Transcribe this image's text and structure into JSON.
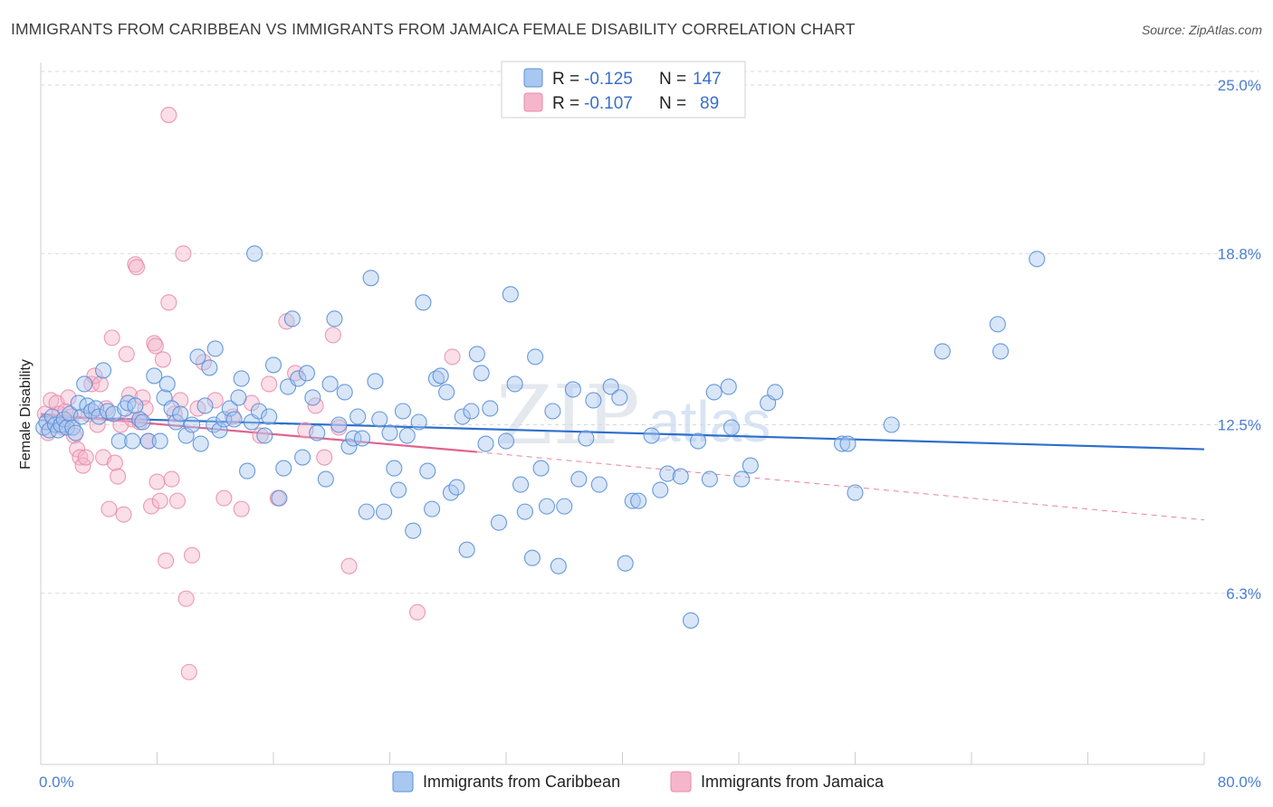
{
  "title": "IMMIGRANTS FROM CARIBBEAN VS IMMIGRANTS FROM JAMAICA FEMALE DISABILITY CORRELATION CHART",
  "source": "Source: ZipAtlas.com",
  "watermark": {
    "zip": "ZIP",
    "atlas": "atlas"
  },
  "colors": {
    "blue_fill": "#a9c8f0",
    "blue_stroke": "#5a8fd8",
    "blue_line": "#2e6fcc",
    "pink_fill": "#f5b6cb",
    "pink_stroke": "#e889a8",
    "pink_line": "#e0648f",
    "grid": "#d9d9d9",
    "tick_text": "#4a7fd0"
  },
  "legend": {
    "rows": [
      {
        "r_label": "R =",
        "r_value": "-0.125",
        "n_label": "N =",
        "n_value": "147",
        "series": "blue"
      },
      {
        "r_label": "R =",
        "r_value": "-0.107",
        "n_label": "N =",
        "n_value": "89",
        "series": "pink"
      }
    ]
  },
  "bottom_legend": [
    {
      "label": "Immigrants from Caribbean",
      "series": "blue"
    },
    {
      "label": "Immigrants from Jamaica",
      "series": "pink"
    }
  ],
  "chart_data": {
    "type": "scatter",
    "title": "IMMIGRANTS FROM CARIBBEAN VS IMMIGRANTS FROM JAMAICA FEMALE DISABILITY CORRELATION CHART",
    "xlabel": "",
    "ylabel": "Female Disability",
    "xlim": [
      0,
      80
    ],
    "ylim": [
      0,
      25.5
    ],
    "x_tick_labels": [
      "0.0%",
      "80.0%"
    ],
    "y_ticks": [
      6.3,
      12.5,
      18.8,
      25.0
    ],
    "y_tick_labels": [
      "6.3%",
      "12.5%",
      "18.8%",
      "25.0%"
    ],
    "grid": "horizontal dashed",
    "legend_position": "top-center",
    "series": [
      {
        "name": "Immigrants from Caribbean",
        "color": "blue",
        "trend": {
          "x": [
            0,
            80
          ],
          "y": [
            12.8,
            11.6
          ],
          "style": "solid"
        },
        "points": [
          [
            0.2,
            12.4
          ],
          [
            0.4,
            12.6
          ],
          [
            0.6,
            12.3
          ],
          [
            0.8,
            12.8
          ],
          [
            1.0,
            12.5
          ],
          [
            1.2,
            12.3
          ],
          [
            1.4,
            12.5
          ],
          [
            1.6,
            12.7
          ],
          [
            1.8,
            12.4
          ],
          [
            2.0,
            12.9
          ],
          [
            2.2,
            12.4
          ],
          [
            2.4,
            12.2
          ],
          [
            2.6,
            13.3
          ],
          [
            2.8,
            12.8
          ],
          [
            3.0,
            14.0
          ],
          [
            3.2,
            13.2
          ],
          [
            3.5,
            13.0
          ],
          [
            3.8,
            13.1
          ],
          [
            4.0,
            12.8
          ],
          [
            4.3,
            14.5
          ],
          [
            4.6,
            13.0
          ],
          [
            5.0,
            12.9
          ],
          [
            5.4,
            11.9
          ],
          [
            5.8,
            13.1
          ],
          [
            6.0,
            13.3
          ],
          [
            6.3,
            11.9
          ],
          [
            6.5,
            13.2
          ],
          [
            6.8,
            12.7
          ],
          [
            7.0,
            12.6
          ],
          [
            7.4,
            11.9
          ],
          [
            7.8,
            14.3
          ],
          [
            8.2,
            11.9
          ],
          [
            8.5,
            13.5
          ],
          [
            8.7,
            14.0
          ],
          [
            9.0,
            13.1
          ],
          [
            9.3,
            12.6
          ],
          [
            9.6,
            12.9
          ],
          [
            10.0,
            12.1
          ],
          [
            10.4,
            12.5
          ],
          [
            10.8,
            15.0
          ],
          [
            11.0,
            11.8
          ],
          [
            11.3,
            13.2
          ],
          [
            11.6,
            14.6
          ],
          [
            11.9,
            12.5
          ],
          [
            12.0,
            15.3
          ],
          [
            12.3,
            12.3
          ],
          [
            12.6,
            12.7
          ],
          [
            13.0,
            13.1
          ],
          [
            13.3,
            12.7
          ],
          [
            13.6,
            13.5
          ],
          [
            13.8,
            14.2
          ],
          [
            14.2,
            10.8
          ],
          [
            14.5,
            12.6
          ],
          [
            14.7,
            18.8
          ],
          [
            15.0,
            13.0
          ],
          [
            15.4,
            12.1
          ],
          [
            15.7,
            12.8
          ],
          [
            16.0,
            14.7
          ],
          [
            16.4,
            9.8
          ],
          [
            16.7,
            10.9
          ],
          [
            17.0,
            13.9
          ],
          [
            17.3,
            16.4
          ],
          [
            17.7,
            14.2
          ],
          [
            18.0,
            11.3
          ],
          [
            18.3,
            14.4
          ],
          [
            18.7,
            13.5
          ],
          [
            19.0,
            12.2
          ],
          [
            19.6,
            10.5
          ],
          [
            19.9,
            14.0
          ],
          [
            20.2,
            16.4
          ],
          [
            20.5,
            12.5
          ],
          [
            20.9,
            13.7
          ],
          [
            21.2,
            11.7
          ],
          [
            21.5,
            12.0
          ],
          [
            21.8,
            12.8
          ],
          [
            22.1,
            12.0
          ],
          [
            22.4,
            9.3
          ],
          [
            22.7,
            17.9
          ],
          [
            23.0,
            14.1
          ],
          [
            23.3,
            12.7
          ],
          [
            23.6,
            9.3
          ],
          [
            24.0,
            12.2
          ],
          [
            24.3,
            10.9
          ],
          [
            24.6,
            10.1
          ],
          [
            24.9,
            13.0
          ],
          [
            25.2,
            12.1
          ],
          [
            25.6,
            8.6
          ],
          [
            26.0,
            12.6
          ],
          [
            26.3,
            17.0
          ],
          [
            26.6,
            10.8
          ],
          [
            26.9,
            9.4
          ],
          [
            27.2,
            14.2
          ],
          [
            27.5,
            14.3
          ],
          [
            27.9,
            13.7
          ],
          [
            28.2,
            10.0
          ],
          [
            28.6,
            10.2
          ],
          [
            29.0,
            12.8
          ],
          [
            29.3,
            7.9
          ],
          [
            29.6,
            13.0
          ],
          [
            30.0,
            15.1
          ],
          [
            30.3,
            14.4
          ],
          [
            30.6,
            11.8
          ],
          [
            30.9,
            13.1
          ],
          [
            31.5,
            8.9
          ],
          [
            32.0,
            11.9
          ],
          [
            32.3,
            17.3
          ],
          [
            32.6,
            14.0
          ],
          [
            33.0,
            10.3
          ],
          [
            33.3,
            9.3
          ],
          [
            33.8,
            7.6
          ],
          [
            34.0,
            15.0
          ],
          [
            34.4,
            10.9
          ],
          [
            34.8,
            9.5
          ],
          [
            35.2,
            13.0
          ],
          [
            35.6,
            7.3
          ],
          [
            36.0,
            9.5
          ],
          [
            36.6,
            13.8
          ],
          [
            37.0,
            10.5
          ],
          [
            37.5,
            12.0
          ],
          [
            38.0,
            13.4
          ],
          [
            38.4,
            10.3
          ],
          [
            39.2,
            13.9
          ],
          [
            39.8,
            13.5
          ],
          [
            40.2,
            7.4
          ],
          [
            40.7,
            9.7
          ],
          [
            41.1,
            9.7
          ],
          [
            42.0,
            12.1
          ],
          [
            42.6,
            10.1
          ],
          [
            43.1,
            10.7
          ],
          [
            44.0,
            10.6
          ],
          [
            44.7,
            5.3
          ],
          [
            45.2,
            11.9
          ],
          [
            46.0,
            10.5
          ],
          [
            46.3,
            13.7
          ],
          [
            47.3,
            13.9
          ],
          [
            47.5,
            12.4
          ],
          [
            48.2,
            10.5
          ],
          [
            48.8,
            11.0
          ],
          [
            50.0,
            13.3
          ],
          [
            50.5,
            13.7
          ],
          [
            55.1,
            11.8
          ],
          [
            55.5,
            11.8
          ],
          [
            56.0,
            10.0
          ],
          [
            58.5,
            12.5
          ],
          [
            62.0,
            15.2
          ],
          [
            65.8,
            16.2
          ],
          [
            66.0,
            15.2
          ],
          [
            68.5,
            18.6
          ]
        ]
      },
      {
        "name": "Immigrants from Jamaica",
        "color": "pink",
        "trend": {
          "x": [
            0,
            30
          ],
          "y": [
            12.9,
            11.5
          ],
          "style": "solid",
          "extension": {
            "x": [
              30,
              80
            ],
            "y": [
              11.5,
              9.0
            ],
            "style": "dashed"
          }
        },
        "points": [
          [
            0.3,
            12.9
          ],
          [
            0.5,
            12.2
          ],
          [
            0.7,
            13.4
          ],
          [
            0.9,
            12.6
          ],
          [
            1.1,
            13.3
          ],
          [
            1.3,
            12.9
          ],
          [
            1.5,
            12.4
          ],
          [
            1.7,
            13.0
          ],
          [
            1.9,
            13.5
          ],
          [
            2.1,
            12.8
          ],
          [
            2.3,
            12.1
          ],
          [
            2.5,
            11.6
          ],
          [
            2.7,
            11.3
          ],
          [
            2.9,
            11.0
          ],
          [
            3.1,
            11.3
          ],
          [
            3.3,
            12.9
          ],
          [
            3.5,
            14.0
          ],
          [
            3.7,
            14.3
          ],
          [
            3.9,
            12.5
          ],
          [
            4.1,
            14.0
          ],
          [
            4.3,
            11.3
          ],
          [
            4.5,
            13.1
          ],
          [
            4.7,
            9.4
          ],
          [
            4.9,
            15.7
          ],
          [
            5.1,
            11.1
          ],
          [
            5.3,
            10.6
          ],
          [
            5.5,
            12.5
          ],
          [
            5.7,
            9.2
          ],
          [
            5.9,
            15.1
          ],
          [
            6.1,
            13.6
          ],
          [
            6.3,
            12.7
          ],
          [
            6.5,
            18.4
          ],
          [
            6.8,
            12.6
          ],
          [
            7.0,
            13.5
          ],
          [
            7.2,
            13.1
          ],
          [
            7.4,
            11.9
          ],
          [
            7.6,
            9.5
          ],
          [
            7.8,
            15.5
          ],
          [
            8.0,
            10.4
          ],
          [
            8.2,
            9.7
          ],
          [
            8.4,
            14.9
          ],
          [
            8.6,
            7.5
          ],
          [
            8.8,
            17.0
          ],
          [
            9.0,
            10.5
          ],
          [
            9.2,
            12.9
          ],
          [
            9.4,
            9.7
          ],
          [
            9.6,
            13.4
          ],
          [
            9.8,
            18.8
          ],
          [
            10.0,
            6.1
          ],
          [
            10.2,
            3.4
          ],
          [
            10.4,
            7.7
          ],
          [
            10.8,
            13.1
          ],
          [
            11.2,
            14.8
          ],
          [
            12.0,
            13.4
          ],
          [
            12.6,
            9.8
          ],
          [
            13.2,
            12.8
          ],
          [
            13.8,
            9.4
          ],
          [
            14.5,
            13.3
          ],
          [
            15.1,
            12.1
          ],
          [
            15.7,
            14.0
          ],
          [
            16.3,
            9.8
          ],
          [
            16.9,
            16.3
          ],
          [
            17.5,
            14.4
          ],
          [
            18.2,
            12.3
          ],
          [
            18.9,
            13.2
          ],
          [
            19.5,
            11.3
          ],
          [
            20.1,
            15.8
          ],
          [
            20.5,
            12.4
          ],
          [
            21.2,
            7.3
          ],
          [
            28.3,
            15.0
          ],
          [
            25.9,
            5.6
          ],
          [
            8.8,
            23.9
          ],
          [
            6.6,
            18.3
          ],
          [
            7.9,
            15.4
          ]
        ]
      }
    ]
  }
}
